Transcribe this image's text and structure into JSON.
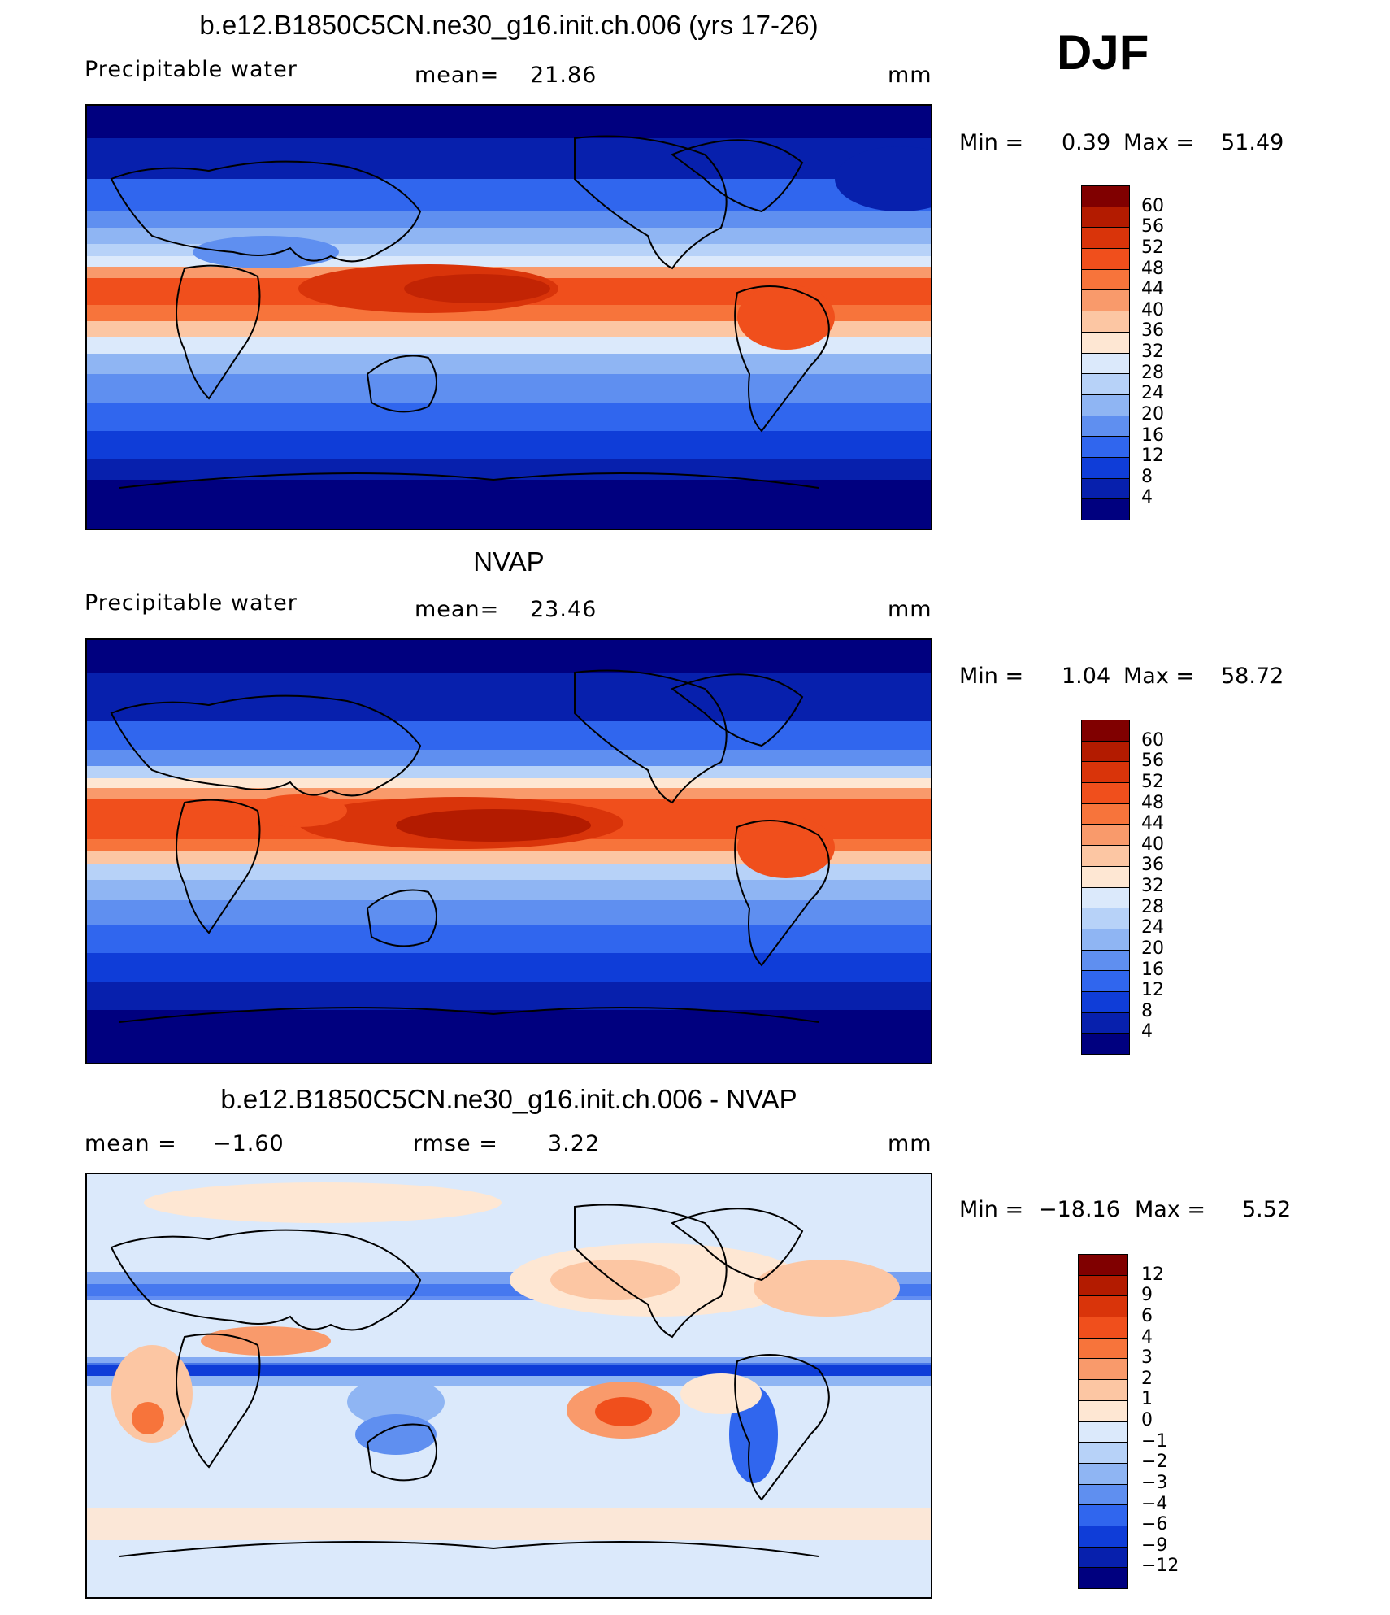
{
  "season": "DJF",
  "panels": [
    {
      "title": "b.e12.B1850C5CN.ne30_g16.init.ch.006 (yrs 17-26)",
      "variable": "Precipitable  water",
      "stat_label": "mean=",
      "stat_value": "21.86",
      "units": "mm",
      "min_label": "Min  =",
      "min_value": "0.39",
      "max_label": "Max  =",
      "max_value": "51.49",
      "colorbar_labels": [
        "60",
        "56",
        "52",
        "48",
        "44",
        "40",
        "36",
        "32",
        "28",
        "24",
        "20",
        "16",
        "12",
        "8",
        "4"
      ]
    },
    {
      "title": "NVAP",
      "variable": "Precipitable  water",
      "stat_label": "mean=",
      "stat_value": "23.46",
      "units": "mm",
      "min_label": "Min  =",
      "min_value": "1.04",
      "max_label": "Max  =",
      "max_value": "58.72",
      "colorbar_labels": [
        "60",
        "56",
        "52",
        "48",
        "44",
        "40",
        "36",
        "32",
        "28",
        "24",
        "20",
        "16",
        "12",
        "8",
        "4"
      ]
    },
    {
      "title": "b.e12.B1850C5CN.ne30_g16.init.ch.006 - NVAP",
      "mean_label": "mean  =",
      "mean_value": "−1.60",
      "rmse_label": "rmse  =",
      "rmse_value": "3.22",
      "units": "mm",
      "min_label": "Min  =",
      "min_value": "−18.16",
      "max_label": "Max  =",
      "max_value": "5.52",
      "colorbar_labels": [
        "12",
        "9",
        "6",
        "4",
        "3",
        "2",
        "1",
        "0",
        "−1",
        "−2",
        "−3",
        "−4",
        "−6",
        "−9",
        "−12"
      ]
    }
  ],
  "colors": {
    "abs_scale": [
      "#800000",
      "#b31b00",
      "#d9340a",
      "#f04f1c",
      "#f7743b",
      "#f99a6b",
      "#fcc6a3",
      "#fee7d3",
      "#dbe9fb",
      "#b7d2f8",
      "#8fb5f3",
      "#5f8ff0",
      "#3066ee",
      "#0f3dd8",
      "#0720ad",
      "#00007f"
    ],
    "diff_scale": [
      "#800000",
      "#b31b00",
      "#d9340a",
      "#f04f1c",
      "#f7743b",
      "#f99a6b",
      "#fcc6a3",
      "#fee7d3",
      "#dbe9fb",
      "#b7d2f8",
      "#8fb5f3",
      "#5f8ff0",
      "#3066ee",
      "#0f3dd8",
      "#0720ad",
      "#00007f"
    ]
  }
}
